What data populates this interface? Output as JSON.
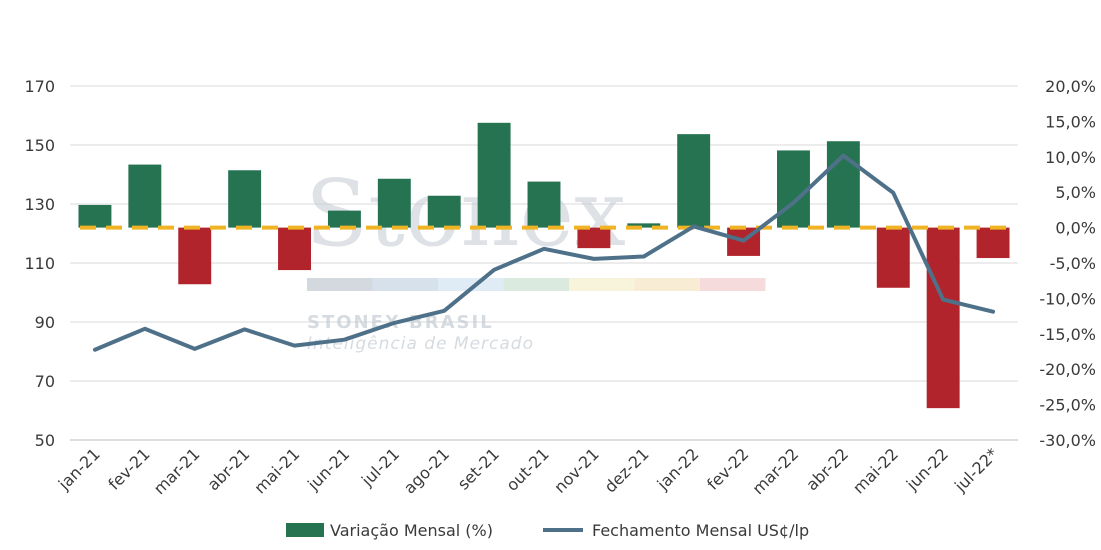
{
  "watermark": {
    "logo": "Stonex",
    "brand": "STONEX BRASIL",
    "tagline": "Inteligência de Mercado",
    "stripe_colors": [
      "#c6ccd4",
      "#c9d7e6",
      "#d6e6f2",
      "#cfe3d4",
      "#f6efcf",
      "#f7e6c6",
      "#f1cfcf"
    ]
  },
  "colors": {
    "positive_bar": "#267352",
    "negative_bar": "#b1242c",
    "line": "#4e7189",
    "zero_dash": "#f0b323"
  },
  "chart_data": {
    "type": "bar",
    "categories": [
      "jan-21",
      "fev-21",
      "mar-21",
      "abr-21",
      "mai-21",
      "jun-21",
      "jul-21",
      "ago-21",
      "set-21",
      "out-21",
      "nov-21",
      "dez-21",
      "jan-22",
      "fev-22",
      "mar-22",
      "abr-22",
      "mai-22",
      "jun-22",
      "jul-22*"
    ],
    "series": [
      {
        "name": "Variação Mensal (%)",
        "type": "bar",
        "axis": "right",
        "values": [
          3.2,
          8.9,
          -8.0,
          8.1,
          -6.0,
          2.4,
          6.9,
          4.5,
          14.8,
          6.5,
          -2.9,
          0.6,
          13.2,
          -4.0,
          10.9,
          12.2,
          -8.5,
          -25.5,
          -4.3
        ]
      },
      {
        "name": "Fechamento Mensal US¢/lp",
        "type": "line",
        "axis": "left",
        "values": [
          80.6,
          87.7,
          80.9,
          87.5,
          82.0,
          84.0,
          89.7,
          93.8,
          107.7,
          114.8,
          111.4,
          112.2,
          122.4,
          117.6,
          130.4,
          146.4,
          133.8,
          97.6,
          93.5
        ]
      }
    ],
    "y_left": {
      "min": 50,
      "max": 170,
      "ticks": [
        "50",
        "70",
        "90",
        "110",
        "130",
        "150",
        "170"
      ]
    },
    "y_right": {
      "min": -30,
      "max": 20,
      "ticks": [
        "-30,0%",
        "-25,0%",
        "-20,0%",
        "-15,0%",
        "-10,0%",
        "-5,0%",
        "0,0%",
        "5,0%",
        "10,0%",
        "15,0%",
        "20,0%"
      ]
    },
    "grid": true,
    "legend_position": "bottom"
  }
}
